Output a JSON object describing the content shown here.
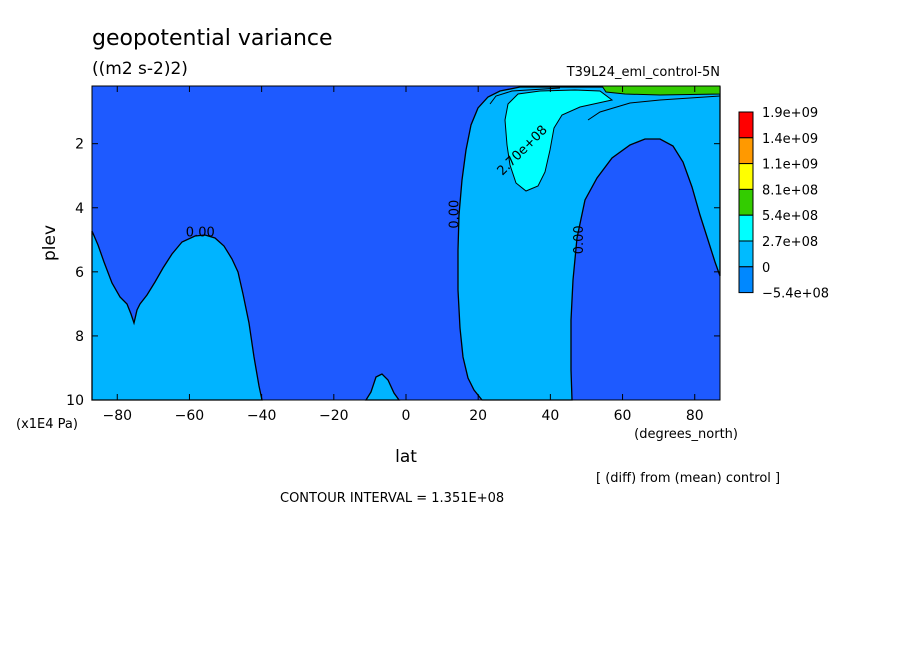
{
  "chart_data": {
    "type": "contour",
    "title": "geopotential variance",
    "units": "((m2 s-2)2)",
    "run_label": "T39L24_eml_control-5N",
    "xlabel": "lat",
    "x_units": "(degrees_north)",
    "ylabel": "plev",
    "y_units": "(x1E4 Pa)",
    "xlim": [
      -87,
      87
    ],
    "ylim": [
      10,
      0.2
    ],
    "x_ticks": [
      -80,
      -60,
      -40,
      -20,
      0,
      20,
      40,
      60,
      80
    ],
    "y_ticks": [
      2,
      4,
      6,
      8,
      10
    ],
    "x_tick_labels": [
      "−80",
      "−60",
      "−40",
      "−20",
      "0",
      "20",
      "40",
      "60",
      "80"
    ],
    "y_tick_labels": [
      "2",
      "4",
      "6",
      "8",
      "10"
    ],
    "contour_interval": "CONTOUR INTERVAL = 1.351E+08",
    "note": "[ (diff) from (mean) control ]",
    "contour_labels": [
      {
        "text": "0.00",
        "x": -57,
        "y": 4.9
      },
      {
        "text": "0.00",
        "x": 14.5,
        "y": 4.2
      },
      {
        "text": "2.70e+08",
        "x": 33,
        "y": 2.3
      },
      {
        "text": "0.00",
        "x": 49,
        "y": 5.0
      }
    ],
    "legend": {
      "labels": [
        "1.9e+09",
        "1.4e+09",
        "1.1e+09",
        "8.1e+08",
        "5.4e+08",
        "2.7e+08",
        "0",
        "−5.4e+08"
      ],
      "colors": [
        "#ff0000",
        "#ff9900",
        "#ffff00",
        "#33cc00",
        "#00ffff",
        "#00bbff",
        "#0088ff"
      ],
      "level_colors": {
        "below_zero": "#1e5aff",
        "zero_to_2.7e8": "#00b4ff",
        "2.7e8_to_5.4e8": "#00ffff",
        "5.4e8_to_8.1e8": "#33cc00"
      }
    }
  }
}
